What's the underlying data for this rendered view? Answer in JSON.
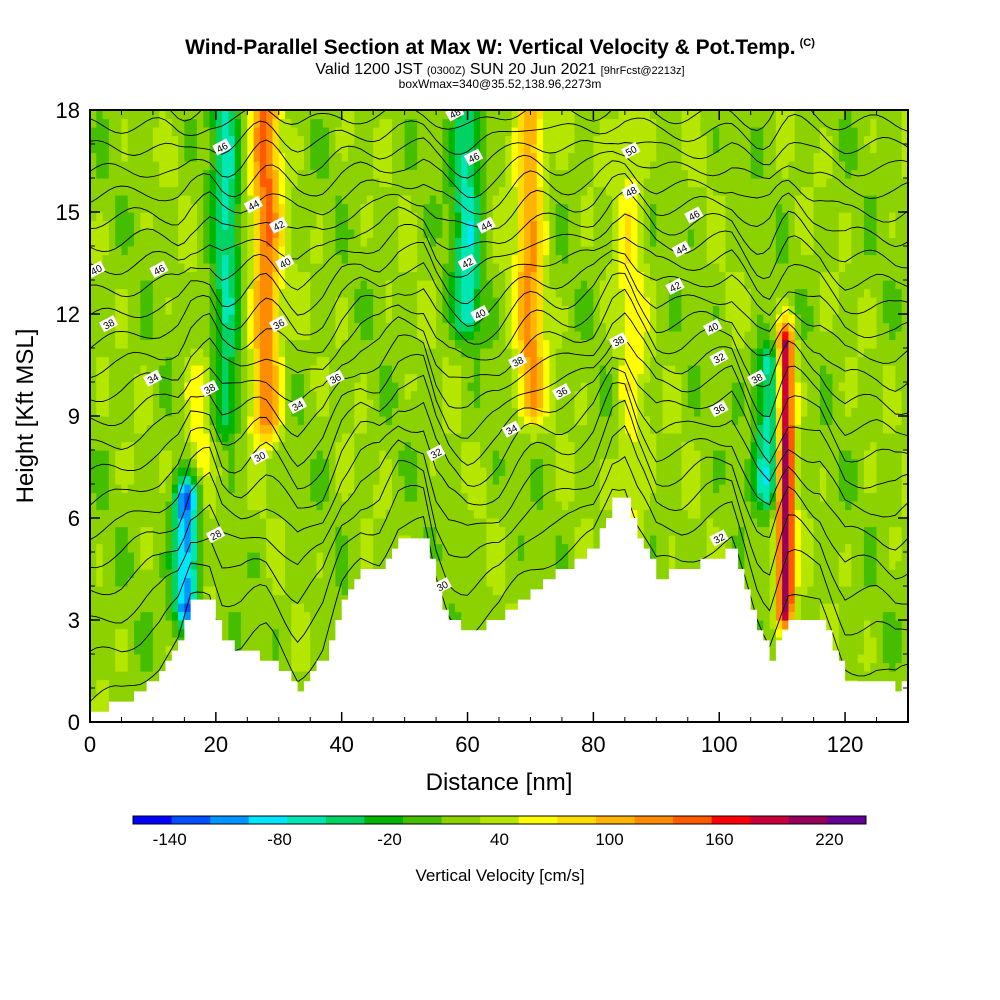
{
  "header": {
    "title": "Wind-Parallel Section at Max W: Vertical Velocity & Pot.Temp.",
    "copyright": "(C)",
    "valid_prefix": "Valid 1200 JST",
    "valid_utc": "(0300Z)",
    "valid_date": "SUN 20 Jun 2021",
    "forecast": "[9hrFcst@2213z]",
    "box_info": "boxWmax=340@35.52,138.96,2273m"
  },
  "chart_data": {
    "type": "heatmap",
    "xlabel": "Distance [nm]",
    "ylabel": "Height [Kft MSL]",
    "xlim": [
      0,
      130
    ],
    "ylim": [
      0,
      18
    ],
    "x_ticks": [
      "0",
      "20",
      "40",
      "60",
      "80",
      "100",
      "120"
    ],
    "y_ticks": [
      "0",
      "3",
      "6",
      "9",
      "12",
      "15",
      "18"
    ],
    "colorbar": {
      "title": "Vertical Velocity [cm/s]",
      "range": [
        -160,
        240
      ],
      "step": 20,
      "tick_labels": [
        "-140",
        "-80",
        "-20",
        "40",
        "100",
        "160",
        "220"
      ],
      "colors": [
        "#0000ff",
        "#0050ff",
        "#0096ff",
        "#00e6ff",
        "#00e6b4",
        "#00d264",
        "#00b400",
        "#46be00",
        "#8cd200",
        "#b4e600",
        "#ffff00",
        "#ffdc00",
        "#ffb400",
        "#ff8c00",
        "#ff5a00",
        "#ff0000",
        "#c8003c",
        "#96005a",
        "#640096"
      ]
    },
    "terrain": [
      [
        0,
        0.3
      ],
      [
        5,
        0.6
      ],
      [
        8,
        1.0
      ],
      [
        11,
        1.5
      ],
      [
        14,
        2.4
      ],
      [
        16,
        3.6
      ],
      [
        19,
        3.6
      ],
      [
        21,
        2.4
      ],
      [
        24,
        2.0
      ],
      [
        28,
        1.9
      ],
      [
        33,
        1.0
      ],
      [
        37,
        1.9
      ],
      [
        40,
        3.6
      ],
      [
        43,
        4.4
      ],
      [
        46,
        4.5
      ],
      [
        49,
        5.5
      ],
      [
        53,
        5.5
      ],
      [
        55,
        3.8
      ],
      [
        57,
        3.0
      ],
      [
        60,
        2.7
      ],
      [
        65,
        3.0
      ],
      [
        68,
        3.6
      ],
      [
        73,
        4.3
      ],
      [
        77,
        4.7
      ],
      [
        80,
        5.2
      ],
      [
        83,
        6.6
      ],
      [
        85,
        6.6
      ],
      [
        87,
        5.4
      ],
      [
        90,
        4.3
      ],
      [
        94,
        4.4
      ],
      [
        98,
        4.8
      ],
      [
        102,
        5.0
      ],
      [
        106,
        2.7
      ],
      [
        108,
        1.9
      ],
      [
        111,
        3.0
      ],
      [
        116,
        3.0
      ],
      [
        120,
        1.3
      ],
      [
        125,
        1.3
      ],
      [
        128,
        1.0
      ],
      [
        130,
        1.2
      ]
    ],
    "vertical_velocity_features": [
      {
        "type": "updraft",
        "x": 17.5,
        "y_bottom": 4.0,
        "y_top": 10.0,
        "value": 60
      },
      {
        "type": "updraft",
        "x": 28,
        "y_bottom": 9.0,
        "y_top": 18.0,
        "value": 120
      },
      {
        "type": "updraft",
        "x": 70,
        "y_bottom": 9.5,
        "y_top": 18.0,
        "value": 100
      },
      {
        "type": "updraft",
        "x": 86,
        "y_bottom": 5.0,
        "y_top": 18.0,
        "value": 50
      },
      {
        "type": "updraft",
        "x": 110.5,
        "y_bottom": 3.5,
        "y_top": 11.0,
        "value": 200
      },
      {
        "type": "downdraft",
        "x": 15.5,
        "y_bottom": 3.5,
        "y_top": 6.5,
        "value": -140
      },
      {
        "type": "downdraft",
        "x": 21.5,
        "y_bottom": 9.0,
        "y_top": 18.0,
        "value": -60
      },
      {
        "type": "downdraft",
        "x": 60,
        "y_bottom": 12.0,
        "y_top": 18.0,
        "value": -70
      },
      {
        "type": "downdraft",
        "x": 108,
        "y_bottom": 7.0,
        "y_top": 10.5,
        "value": -80
      }
    ],
    "potential_temperature_contour_labels": [
      "28",
      "30",
      "30",
      "32",
      "32",
      "34",
      "34",
      "34",
      "36",
      "36",
      "36",
      "36",
      "38",
      "38",
      "38",
      "38",
      "38",
      "40",
      "40",
      "40",
      "40",
      "42",
      "42",
      "42",
      "44",
      "44",
      "44",
      "46",
      "46",
      "46",
      "46",
      "48",
      "48",
      "50",
      "32"
    ]
  }
}
